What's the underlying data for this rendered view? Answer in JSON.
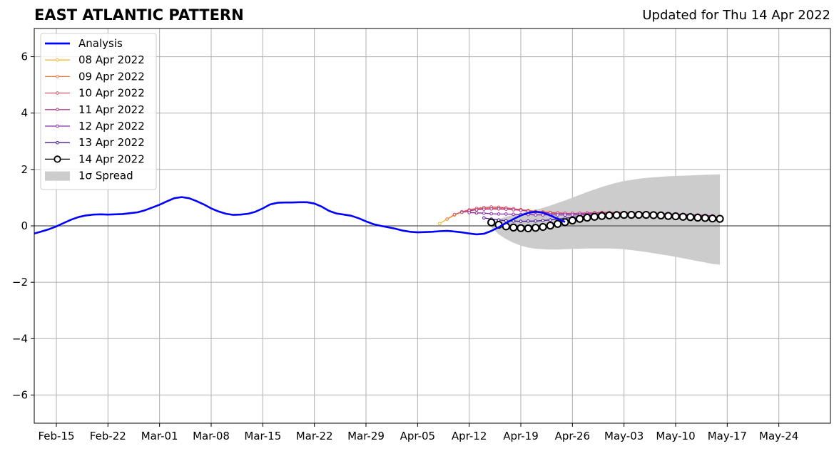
{
  "title": "EAST ATLANTIC PATTERN",
  "updated": "Updated for Thu 14 Apr 2022",
  "chart_data": {
    "type": "line",
    "grid": true,
    "legend_position": "top-left",
    "xlim": [
      "2022-02-12",
      "2022-05-31"
    ],
    "ylim": [
      -7,
      7
    ],
    "yticks": [
      -6,
      -4,
      -2,
      0,
      2,
      4,
      6
    ],
    "ytick_labels": [
      "−6",
      "−4",
      "−2",
      "0",
      "2",
      "4",
      "6"
    ],
    "xticks": [
      {
        "date": "2022-02-15",
        "label": "Feb-15"
      },
      {
        "date": "2022-02-22",
        "label": "Feb-22"
      },
      {
        "date": "2022-03-01",
        "label": "Mar-01"
      },
      {
        "date": "2022-03-08",
        "label": "Mar-08"
      },
      {
        "date": "2022-03-15",
        "label": "Mar-15"
      },
      {
        "date": "2022-03-22",
        "label": "Mar-22"
      },
      {
        "date": "2022-03-29",
        "label": "Mar-29"
      },
      {
        "date": "2022-04-05",
        "label": "Apr-05"
      },
      {
        "date": "2022-04-12",
        "label": "Apr-12"
      },
      {
        "date": "2022-04-19",
        "label": "Apr-19"
      },
      {
        "date": "2022-04-26",
        "label": "Apr-26"
      },
      {
        "date": "2022-05-03",
        "label": "May-03"
      },
      {
        "date": "2022-05-10",
        "label": "May-10"
      },
      {
        "date": "2022-05-17",
        "label": "May-17"
      },
      {
        "date": "2022-05-24",
        "label": "May-24"
      }
    ],
    "analysis": {
      "name": "Analysis",
      "color": "#0000ff",
      "start_date": "2022-02-12",
      "values": [
        -0.27,
        -0.2,
        -0.12,
        -0.02,
        0.1,
        0.22,
        0.31,
        0.37,
        0.4,
        0.41,
        0.4,
        0.41,
        0.42,
        0.45,
        0.48,
        0.55,
        0.65,
        0.75,
        0.87,
        0.98,
        1.02,
        0.98,
        0.88,
        0.76,
        0.62,
        0.51,
        0.43,
        0.39,
        0.4,
        0.43,
        0.5,
        0.62,
        0.76,
        0.82,
        0.83,
        0.83,
        0.84,
        0.84,
        0.79,
        0.68,
        0.53,
        0.44,
        0.4,
        0.36,
        0.27,
        0.16,
        0.06,
        0.0,
        -0.05,
        -0.1,
        -0.17,
        -0.21,
        -0.23,
        -0.22,
        -0.21,
        -0.19,
        -0.18,
        -0.2,
        -0.23,
        -0.27,
        -0.3,
        -0.28,
        -0.18,
        -0.05,
        0.1,
        0.24,
        0.37,
        0.46,
        0.5,
        0.47,
        0.37,
        0.25,
        0.14
      ]
    },
    "series": [
      {
        "name": "08 Apr 2022",
        "color": "#f5b731",
        "start_date": "2022-04-08",
        "values": [
          0.08,
          0.24,
          0.38,
          0.48,
          0.5,
          0.45
        ]
      },
      {
        "name": "09 Apr 2022",
        "color": "#f07f3c",
        "start_date": "2022-04-09",
        "values": [
          0.24,
          0.4,
          0.5,
          0.56,
          0.6,
          0.62,
          0.63,
          0.63,
          0.62,
          0.6,
          0.58,
          0.55,
          0.52,
          0.5,
          0.48,
          0.46,
          0.45,
          0.44,
          0.44
        ]
      },
      {
        "name": "10 Apr 2022",
        "color": "#d6536c",
        "start_date": "2022-04-10",
        "values": [
          0.4,
          0.5,
          0.57,
          0.62,
          0.65,
          0.67,
          0.66,
          0.64,
          0.61,
          0.57,
          0.53,
          0.5,
          0.47,
          0.45,
          0.44,
          0.44,
          0.44,
          0.45,
          0.46,
          0.47,
          0.48,
          0.48,
          0.48,
          0.48,
          0.47,
          0.47,
          0.46,
          0.45,
          0.44,
          0.43,
          0.42,
          0.41,
          0.4,
          0.38,
          0.37
        ]
      },
      {
        "name": "11 Apr 2022",
        "color": "#b03a8c",
        "start_date": "2022-04-11",
        "values": [
          0.48,
          0.53,
          0.57,
          0.59,
          0.6,
          0.6,
          0.59,
          0.57,
          0.55,
          0.52,
          0.5,
          0.48,
          0.46,
          0.45,
          0.44,
          0.44,
          0.44,
          0.44,
          0.45,
          0.46,
          0.46,
          0.46,
          0.46,
          0.46,
          0.46,
          0.45,
          0.45,
          0.44,
          0.43,
          0.42,
          0.41,
          0.4,
          0.39,
          0.37,
          0.36
        ]
      },
      {
        "name": "12 Apr 2022",
        "color": "#8a2bb2",
        "start_date": "2022-04-12",
        "values": [
          0.47,
          0.46,
          0.45,
          0.43,
          0.42,
          0.42,
          0.41,
          0.4,
          0.4,
          0.39,
          0.39,
          0.39,
          0.39,
          0.39,
          0.39,
          0.39,
          0.4,
          0.41,
          0.42,
          0.43,
          0.44,
          0.44,
          0.44,
          0.44,
          0.44,
          0.43,
          0.42,
          0.41,
          0.4,
          0.39,
          0.38,
          0.36,
          0.35
        ]
      },
      {
        "name": "13 Apr 2022",
        "color": "#4c1899",
        "start_date": "2022-04-14",
        "values": [
          0.28,
          0.24,
          0.21,
          0.18,
          0.17,
          0.16,
          0.17,
          0.17,
          0.19,
          0.21,
          0.24,
          0.27,
          0.3,
          0.33,
          0.35,
          0.37,
          0.38,
          0.39,
          0.4,
          0.41,
          0.41,
          0.41,
          0.41,
          0.4,
          0.39,
          0.37,
          0.36,
          0.34,
          0.32,
          0.3
        ]
      }
    ],
    "forecast": {
      "name": "14 Apr 2022",
      "color": "#000000",
      "marker_face": "#ffffff",
      "start_date": "2022-04-15",
      "values": [
        0.12,
        0.04,
        -0.02,
        -0.06,
        -0.08,
        -0.09,
        -0.07,
        -0.04,
        0.01,
        0.07,
        0.13,
        0.19,
        0.25,
        0.29,
        0.32,
        0.35,
        0.37,
        0.38,
        0.39,
        0.39,
        0.39,
        0.39,
        0.38,
        0.37,
        0.35,
        0.34,
        0.32,
        0.31,
        0.29,
        0.28,
        0.26,
        0.25
      ]
    },
    "spread": {
      "name": "1σ Spread",
      "color": "#cccccc",
      "start_date": "2022-04-15",
      "upper": [
        0.12,
        0.24,
        0.32,
        0.39,
        0.45,
        0.51,
        0.57,
        0.64,
        0.72,
        0.81,
        0.9,
        1.0,
        1.1,
        1.2,
        1.29,
        1.38,
        1.46,
        1.53,
        1.59,
        1.63,
        1.67,
        1.7,
        1.72,
        1.74,
        1.76,
        1.77,
        1.78,
        1.79,
        1.8,
        1.81,
        1.82,
        1.83
      ],
      "lower": [
        -0.05,
        -0.3,
        -0.47,
        -0.6,
        -0.7,
        -0.77,
        -0.81,
        -0.83,
        -0.84,
        -0.84,
        -0.83,
        -0.82,
        -0.81,
        -0.8,
        -0.8,
        -0.8,
        -0.8,
        -0.81,
        -0.83,
        -0.86,
        -0.89,
        -0.93,
        -0.97,
        -1.01,
        -1.05,
        -1.1,
        -1.15,
        -1.2,
        -1.25,
        -1.3,
        -1.35,
        -1.38
      ]
    }
  }
}
